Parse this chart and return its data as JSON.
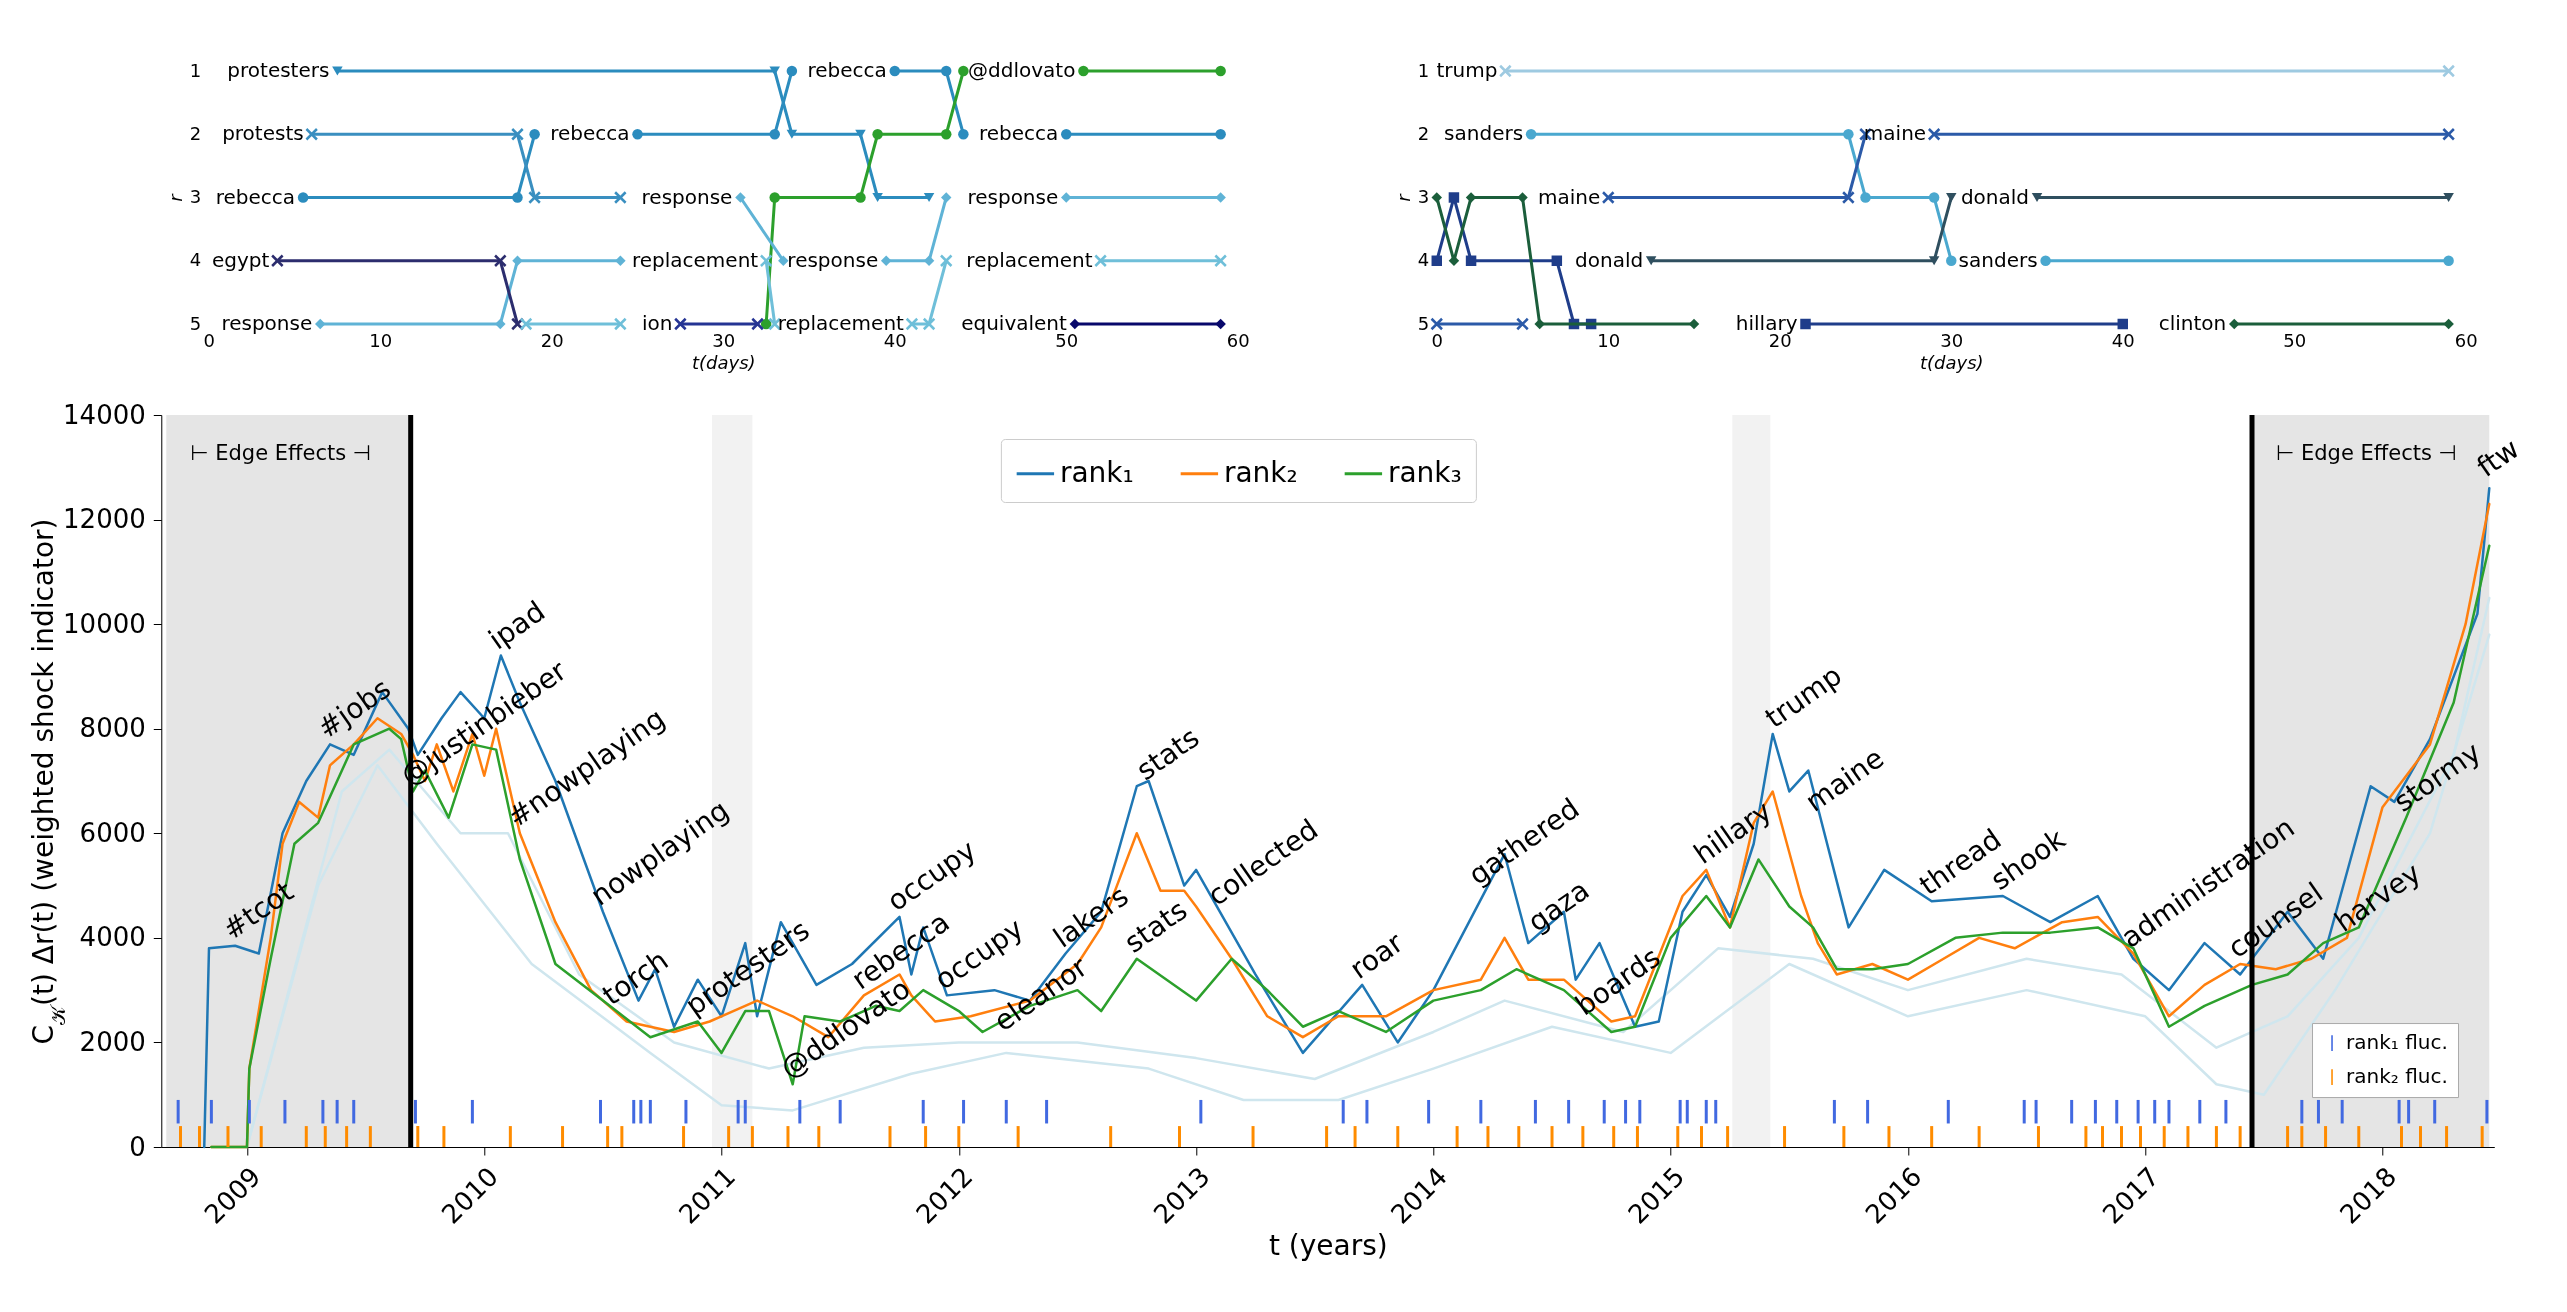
{
  "chart_data": [
    {
      "type": "line",
      "xlabel": "t(days)",
      "ylabel": "r",
      "xlim": [
        0,
        60
      ],
      "ylim": [
        5,
        1
      ],
      "xticks": [
        0,
        10,
        20,
        30,
        40,
        50,
        60
      ],
      "yticks": [
        1,
        2,
        3,
        4,
        5
      ],
      "series": [
        {
          "name": "protesters",
          "color": "#2b8cbe",
          "marker": "triangle",
          "x": [
            7.5,
            33,
            34,
            38,
            39,
            42
          ],
          "values": [
            1,
            1,
            2,
            2,
            3,
            3
          ]
        },
        {
          "name": "rebecca",
          "color": "#2b8cbe",
          "marker": "circle",
          "x": [
            5.5,
            18,
            19
          ],
          "values": [
            3,
            3,
            2
          ]
        },
        {
          "name": "rebecca",
          "color": "#2b8cbe",
          "marker": "circle",
          "x": [
            25,
            33,
            34
          ],
          "values": [
            2,
            2,
            1
          ]
        },
        {
          "name": "rebecca",
          "color": "#2b8cbe",
          "marker": "circle",
          "x": [
            40,
            43,
            44
          ],
          "values": [
            1,
            1,
            2
          ]
        },
        {
          "name": "rebecca",
          "color": "#2b8cbe",
          "marker": "circle",
          "x": [
            50,
            59
          ],
          "values": [
            2,
            2
          ]
        },
        {
          "color": "#2ca02c",
          "marker": "circle",
          "x": [
            32.5,
            33,
            38,
            39,
            43,
            44
          ],
          "values": [
            5,
            3,
            3,
            2,
            2,
            1
          ]
        },
        {
          "name": "@ddlovato",
          "color": "#2ca02c",
          "marker": "circle",
          "x": [
            51,
            59
          ],
          "values": [
            1,
            1
          ]
        },
        {
          "name": "protests",
          "color": "#3a8fc0",
          "marker": "cross",
          "x": [
            6,
            18,
            19,
            24
          ],
          "values": [
            2,
            2,
            3,
            3
          ]
        },
        {
          "name": "response",
          "color": "#5fb3d6",
          "marker": "diamond",
          "x": [
            6.5,
            17,
            18,
            24
          ],
          "values": [
            5,
            5,
            4,
            4
          ]
        },
        {
          "name": "response",
          "color": "#5fb3d6",
          "marker": "diamond",
          "x": [
            31,
            33.5
          ],
          "values": [
            3,
            4
          ]
        },
        {
          "name": "response",
          "color": "#5fb3d6",
          "marker": "diamond",
          "x": [
            39.5,
            42,
            43
          ],
          "values": [
            4,
            4,
            3
          ]
        },
        {
          "name": "response",
          "color": "#5fb3d6",
          "marker": "diamond",
          "x": [
            50,
            59
          ],
          "values": [
            3,
            3
          ]
        },
        {
          "name": "egypt",
          "color": "#2c2d6e",
          "marker": "cross",
          "x": [
            4,
            17,
            18
          ],
          "values": [
            4,
            4,
            5
          ]
        },
        {
          "color": "#6fbfd9",
          "marker": "cross",
          "x": [
            18.5,
            24
          ],
          "values": [
            5,
            5
          ]
        },
        {
          "name": "replacement",
          "color": "#6fbfd9",
          "marker": "cross",
          "x": [
            32.5,
            33
          ],
          "values": [
            4,
            5
          ]
        },
        {
          "name": "replacement",
          "color": "#6fbfd9",
          "marker": "cross",
          "x": [
            41,
            42,
            43
          ],
          "values": [
            5,
            5,
            4
          ]
        },
        {
          "name": "replacement",
          "color": "#6fbfd9",
          "marker": "cross",
          "x": [
            52,
            59
          ],
          "values": [
            4,
            4
          ]
        },
        {
          "name": "ion",
          "color": "#253494",
          "marker": "cross",
          "x": [
            27.5,
            32
          ],
          "values": [
            5,
            5
          ]
        },
        {
          "name": "equivalent",
          "color": "#08086b",
          "marker": "diamond",
          "x": [
            50.5,
            59
          ],
          "values": [
            5,
            5
          ]
        }
      ]
    },
    {
      "type": "line",
      "xlabel": "t(days)",
      "ylabel": "r",
      "xlim": [
        0,
        60
      ],
      "ylim": [
        5,
        1
      ],
      "xticks": [
        0,
        10,
        20,
        30,
        40,
        50,
        60
      ],
      "yticks": [
        1,
        2,
        3,
        4,
        5
      ],
      "series": [
        {
          "name": "trump",
          "color": "#9ecae1",
          "marker": "cross",
          "x": [
            4,
            59
          ],
          "values": [
            1,
            1
          ]
        },
        {
          "name": "sanders",
          "color": "#4aa8cf",
          "marker": "circle",
          "x": [
            5.5,
            24,
            25,
            29,
            30
          ],
          "values": [
            2,
            2,
            3,
            3,
            4
          ]
        },
        {
          "name": "sanders",
          "color": "#4aa8cf",
          "marker": "circle",
          "x": [
            35.5,
            59
          ],
          "values": [
            4,
            4
          ]
        },
        {
          "color": "#2b5aa8",
          "marker": "cross",
          "x": [
            0,
            5
          ],
          "values": [
            5,
            5
          ]
        },
        {
          "name": "maine",
          "color": "#2b5aa8",
          "marker": "cross",
          "x": [
            10,
            24,
            25
          ],
          "values": [
            3,
            3,
            2
          ]
        },
        {
          "name": "maine",
          "color": "#2b5aa8",
          "marker": "cross",
          "x": [
            29,
            59
          ],
          "values": [
            2,
            2
          ]
        },
        {
          "name": "donald",
          "color": "#2f4f5f",
          "marker": "triangle",
          "x": [
            12.5,
            29,
            30
          ],
          "values": [
            4,
            4,
            3
          ]
        },
        {
          "name": "donald",
          "color": "#2f4f5f",
          "marker": "triangle",
          "x": [
            35,
            59
          ],
          "values": [
            3,
            3
          ]
        },
        {
          "color": "#1f3d8a",
          "marker": "square",
          "x": [
            0,
            1,
            2,
            7,
            8,
            9
          ],
          "values": [
            4,
            3,
            4,
            4,
            5,
            5
          ]
        },
        {
          "name": "hillary",
          "color": "#1f3d8a",
          "marker": "square",
          "x": [
            21.5,
            40
          ],
          "values": [
            5,
            5
          ]
        },
        {
          "color": "#1b5e3b",
          "marker": "diamond",
          "x": [
            0,
            1,
            2,
            5,
            6,
            15
          ],
          "values": [
            3,
            4,
            3,
            3,
            5,
            5
          ]
        },
        {
          "name": "clinton",
          "color": "#1b5e3b",
          "marker": "diamond",
          "x": [
            46.5,
            59
          ],
          "values": [
            5,
            5
          ]
        }
      ]
    },
    {
      "type": "line",
      "xlabel": "t (years)",
      "ylabel": "C$_{𝒦}$(t) Δr(t) (weighted shock indicator)",
      "xlim": [
        2008.66,
        2018.45
      ],
      "ylim": [
        0,
        14000
      ],
      "xticks": [
        2009,
        2010,
        2011,
        2012,
        2013,
        2014,
        2015,
        2016,
        2017,
        2018
      ],
      "yticks": [
        0,
        2000,
        4000,
        6000,
        8000,
        10000,
        12000,
        14000
      ],
      "legend": "top",
      "bands": [
        {
          "axis": "x",
          "from": 2008.66,
          "to": 2009.69,
          "label": "⊢ Edge Effects ⊣",
          "color": "#e5e5e5"
        },
        {
          "axis": "x",
          "from": 2017.45,
          "to": 2018.45,
          "label": "⊢ Edge Effects ⊣",
          "color": "#e5e5e5"
        },
        {
          "axis": "x",
          "from": 2010.96,
          "to": 2011.13,
          "color": "#f2f2f2"
        },
        {
          "axis": "x",
          "from": 2015.26,
          "to": 2015.42,
          "color": "#f2f2f2"
        }
      ],
      "ref_lines": [
        {
          "axis": "x",
          "value": 2009.69,
          "color": "#000000"
        },
        {
          "axis": "x",
          "value": 2017.45,
          "color": "#000000"
        }
      ],
      "series": [
        {
          "color": "#cfe6ee",
          "x": [
            2009.0,
            2009.3,
            2009.55,
            2009.8,
            2010.2,
            2010.7,
            2011.0,
            2011.3,
            2011.8,
            2012.2,
            2012.8,
            2013.2,
            2013.6,
            2014.0,
            2014.5,
            2015.0,
            2015.5,
            2016.0,
            2016.5,
            2017.0,
            2017.3,
            2017.5,
            2017.8,
            2018.2,
            2018.45
          ],
          "values": [
            0,
            5000,
            7300,
            5800,
            3500,
            1800,
            800,
            700,
            1400,
            1800,
            1500,
            900,
            900,
            1500,
            2300,
            1800,
            3500,
            2500,
            3000,
            2500,
            1200,
            1000,
            3000,
            6000,
            9800
          ]
        },
        {
          "color": "#cfe6ee",
          "x": [
            2009.0,
            2009.4,
            2009.6,
            2009.9,
            2010.1,
            2010.4,
            2010.8,
            2011.2,
            2011.6,
            2012.0,
            2012.5,
            2013.0,
            2013.5,
            2014.0,
            2014.3,
            2014.8,
            2015.2,
            2015.6,
            2016.0,
            2016.5,
            2016.9,
            2017.3,
            2017.6,
            2017.9,
            2018.3,
            2018.45
          ],
          "values": [
            0,
            6800,
            7600,
            6000,
            6000,
            3300,
            2000,
            1500,
            1900,
            2000,
            2000,
            1700,
            1300,
            2200,
            2800,
            2200,
            3800,
            3600,
            3000,
            3600,
            3300,
            1900,
            2500,
            4000,
            7500,
            10500
          ]
        },
        {
          "name": "rank₁",
          "color": "#1f77b4",
          "x": [
            2008.82,
            2008.84,
            2008.95,
            2009.05,
            2009.15,
            2009.25,
            2009.35,
            2009.45,
            2009.57,
            2009.68,
            2009.72,
            2009.82,
            2009.9,
            2010.0,
            2010.07,
            2010.15,
            2010.3,
            2010.5,
            2010.65,
            2010.72,
            2010.8,
            2010.9,
            2011.0,
            2011.1,
            2011.15,
            2011.25,
            2011.4,
            2011.55,
            2011.75,
            2011.8,
            2011.85,
            2011.95,
            2012.15,
            2012.3,
            2012.45,
            2012.6,
            2012.75,
            2012.8,
            2012.95,
            2013.0,
            2013.25,
            2013.45,
            2013.7,
            2013.85,
            2014.0,
            2014.3,
            2014.4,
            2014.55,
            2014.6,
            2014.7,
            2014.85,
            2014.95,
            2015.05,
            2015.15,
            2015.25,
            2015.35,
            2015.43,
            2015.5,
            2015.58,
            2015.75,
            2015.9,
            2016.1,
            2016.4,
            2016.6,
            2016.8,
            2016.95,
            2017.1,
            2017.25,
            2017.4,
            2017.6,
            2017.75,
            2017.95,
            2018.05,
            2018.2,
            2018.4,
            2018.45
          ],
          "values": [
            0,
            3800,
            3850,
            3700,
            6000,
            7000,
            7700,
            7500,
            8700,
            8000,
            7500,
            8200,
            8700,
            8200,
            9400,
            8500,
            7000,
            4500,
            2800,
            3400,
            2300,
            3200,
            2500,
            3900,
            2500,
            4300,
            3100,
            3500,
            4400,
            3300,
            4200,
            2900,
            3000,
            2800,
            3700,
            4500,
            6900,
            7000,
            5000,
            5300,
            3300,
            1800,
            3100,
            2000,
            3000,
            5600,
            3900,
            4500,
            3200,
            3900,
            2300,
            2400,
            4500,
            5200,
            4400,
            5800,
            7900,
            6800,
            7200,
            4200,
            5300,
            4700,
            4800,
            4300,
            4800,
            3600,
            3000,
            3900,
            3300,
            4500,
            3600,
            6900,
            6600,
            7800,
            10200,
            12600
          ]
        },
        {
          "name": "rank₂",
          "color": "#ff7f0e",
          "x": [
            2008.85,
            2009.0,
            2009.01,
            2009.1,
            2009.15,
            2009.22,
            2009.3,
            2009.35,
            2009.45,
            2009.55,
            2009.65,
            2009.7,
            2009.75,
            2009.8,
            2009.87,
            2009.95,
            2010.0,
            2010.05,
            2010.15,
            2010.3,
            2010.45,
            2010.6,
            2010.8,
            2010.95,
            2011.15,
            2011.3,
            2011.45,
            2011.6,
            2011.75,
            2011.8,
            2011.9,
            2012.05,
            2012.3,
            2012.5,
            2012.6,
            2012.75,
            2012.85,
            2012.95,
            2013.0,
            2013.15,
            2013.3,
            2013.45,
            2013.6,
            2013.8,
            2014.0,
            2014.2,
            2014.3,
            2014.4,
            2014.55,
            2014.75,
            2014.85,
            2015.05,
            2015.15,
            2015.25,
            2015.35,
            2015.43,
            2015.55,
            2015.62,
            2015.7,
            2015.85,
            2016.0,
            2016.15,
            2016.3,
            2016.45,
            2016.65,
            2016.8,
            2016.95,
            2017.1,
            2017.25,
            2017.4,
            2017.55,
            2017.7,
            2017.85,
            2018.0,
            2018.2,
            2018.35,
            2018.45
          ],
          "values": [
            0,
            0,
            1500,
            4000,
            5800,
            6600,
            6300,
            7300,
            7700,
            8200,
            7900,
            7500,
            7000,
            7700,
            6800,
            7900,
            7100,
            8000,
            6000,
            4300,
            3000,
            2400,
            2200,
            2400,
            2800,
            2500,
            2100,
            2900,
            3300,
            2900,
            2400,
            2500,
            2800,
            3500,
            4200,
            6000,
            4900,
            4900,
            4600,
            3600,
            2500,
            2100,
            2500,
            2500,
            3000,
            3200,
            4000,
            3200,
            3200,
            2400,
            2500,
            4800,
            5300,
            4200,
            6200,
            6800,
            4800,
            3900,
            3300,
            3500,
            3200,
            3600,
            4000,
            3800,
            4300,
            4400,
            3700,
            2500,
            3100,
            3500,
            3400,
            3600,
            4000,
            6500,
            7700,
            10000,
            12300
          ]
        },
        {
          "name": "rank₃",
          "color": "#2ca02c",
          "x": [
            2008.85,
            2009.0,
            2009.01,
            2009.1,
            2009.2,
            2009.3,
            2009.45,
            2009.6,
            2009.65,
            2009.7,
            2009.75,
            2009.85,
            2009.95,
            2010.05,
            2010.15,
            2010.3,
            2010.5,
            2010.7,
            2010.9,
            2011.0,
            2011.1,
            2011.2,
            2011.3,
            2011.35,
            2011.5,
            2011.65,
            2011.75,
            2011.85,
            2012.0,
            2012.1,
            2012.3,
            2012.5,
            2012.6,
            2012.75,
            2013.0,
            2013.15,
            2013.3,
            2013.45,
            2013.6,
            2013.8,
            2014.0,
            2014.2,
            2014.35,
            2014.55,
            2014.75,
            2014.85,
            2015.0,
            2015.15,
            2015.25,
            2015.37,
            2015.5,
            2015.6,
            2015.7,
            2015.85,
            2016.0,
            2016.2,
            2016.4,
            2016.6,
            2016.8,
            2016.95,
            2017.1,
            2017.25,
            2017.45,
            2017.6,
            2017.75,
            2017.9,
            2018.1,
            2018.3,
            2018.45
          ],
          "values": [
            0,
            0,
            1500,
            3600,
            5800,
            6200,
            7700,
            8000,
            7800,
            6800,
            7200,
            6300,
            7700,
            7600,
            5500,
            3500,
            2800,
            2100,
            2400,
            1800,
            2600,
            2600,
            1200,
            2500,
            2400,
            2700,
            2600,
            3000,
            2600,
            2200,
            2700,
            3000,
            2600,
            3600,
            2800,
            3600,
            3000,
            2300,
            2600,
            2200,
            2800,
            3000,
            3400,
            3000,
            2200,
            2300,
            4000,
            4800,
            4200,
            5500,
            4600,
            4200,
            3400,
            3400,
            3500,
            4000,
            4100,
            4100,
            4200,
            3800,
            2300,
            2700,
            3100,
            3300,
            3900,
            4200,
            6300,
            8500,
            11500
          ]
        },
        {
          "name": "rank₁ fluc.",
          "type": "bar",
          "color": "#4169e1",
          "x": [
            2008.71,
            2008.85,
            2009.01,
            2009.16,
            2009.32,
            2009.38,
            2009.45,
            2009.71,
            2009.95,
            2010.49,
            2010.63,
            2010.66,
            2010.7,
            2010.85,
            2011.07,
            2011.1,
            2011.33,
            2011.5,
            2011.85,
            2012.02,
            2012.2,
            2012.37,
            2013.02,
            2013.62,
            2013.72,
            2013.98,
            2014.2,
            2014.43,
            2014.57,
            2014.72,
            2014.81,
            2014.87,
            2015.04,
            2015.07,
            2015.15,
            2015.19,
            2015.69,
            2015.83,
            2016.17,
            2016.49,
            2016.54,
            2016.69,
            2016.79,
            2016.88,
            2016.97,
            2017.04,
            2017.1,
            2017.23,
            2017.34,
            2017.66,
            2017.73,
            2017.83,
            2018.07,
            2018.11,
            2018.22,
            2018.44
          ],
          "base": [
            450,
            450,
            450,
            450,
            450,
            450,
            450,
            450,
            450,
            450,
            450,
            450,
            450,
            450,
            450,
            450,
            450,
            450,
            450,
            450,
            450,
            450,
            450,
            450,
            450,
            450,
            450,
            450,
            450,
            450,
            450,
            450,
            450,
            450,
            450,
            450,
            450,
            450,
            450,
            450,
            450,
            450,
            450,
            450,
            450,
            450,
            450,
            450,
            450,
            450,
            450,
            450,
            450,
            450,
            450,
            450
          ],
          "values": [
            450,
            450,
            450,
            450,
            450,
            450,
            450,
            450,
            450,
            450,
            450,
            450,
            450,
            450,
            450,
            450,
            450,
            450,
            450,
            450,
            450,
            450,
            450,
            450,
            450,
            450,
            450,
            450,
            450,
            450,
            450,
            450,
            450,
            450,
            450,
            450,
            450,
            450,
            450,
            450,
            450,
            450,
            450,
            450,
            450,
            450,
            450,
            450,
            450,
            450,
            450,
            450,
            450,
            450,
            450,
            450
          ]
        },
        {
          "name": "rank₂ fluc.",
          "type": "bar",
          "color": "#ff8c00",
          "x": [
            2008.72,
            2008.8,
            2008.92,
            2009.06,
            2009.25,
            2009.33,
            2009.42,
            2009.52,
            2009.72,
            2009.83,
            2010.11,
            2010.33,
            2010.52,
            2010.58,
            2010.84,
            2011.03,
            2011.13,
            2011.28,
            2011.41,
            2011.71,
            2011.86,
            2012.0,
            2012.25,
            2012.64,
            2012.93,
            2013.24,
            2013.55,
            2013.67,
            2013.85,
            2014.1,
            2014.23,
            2014.36,
            2014.5,
            2014.63,
            2014.76,
            2014.86,
            2015.03,
            2015.13,
            2015.24,
            2015.48,
            2015.73,
            2015.92,
            2016.1,
            2016.3,
            2016.55,
            2016.75,
            2016.82,
            2016.9,
            2016.98,
            2017.08,
            2017.18,
            2017.3,
            2017.4,
            2017.6,
            2017.66,
            2017.76,
            2017.9,
            2018.08,
            2018.16,
            2018.27,
            2018.42
          ],
          "base": [
            0,
            0,
            0,
            0,
            0,
            0,
            0,
            0,
            0,
            0,
            0,
            0,
            0,
            0,
            0,
            0,
            0,
            0,
            0,
            0,
            0,
            0,
            0,
            0,
            0,
            0,
            0,
            0,
            0,
            0,
            0,
            0,
            0,
            0,
            0,
            0,
            0,
            0,
            0,
            0,
            0,
            0,
            0,
            0,
            0,
            0,
            0,
            0,
            0,
            0,
            0,
            0,
            0,
            0,
            0,
            0,
            0,
            0,
            0,
            0,
            0
          ],
          "values": [
            400,
            400,
            400,
            400,
            400,
            400,
            400,
            400,
            400,
            400,
            400,
            400,
            400,
            400,
            400,
            400,
            400,
            400,
            400,
            400,
            400,
            400,
            400,
            400,
            400,
            400,
            400,
            400,
            400,
            400,
            400,
            400,
            400,
            400,
            400,
            400,
            400,
            400,
            400,
            400,
            400,
            400,
            400,
            400,
            400,
            400,
            400,
            400,
            400,
            400,
            400,
            400,
            400,
            400,
            400,
            400,
            400,
            400,
            400,
            400,
            400
          ]
        }
      ],
      "annotations": [
        {
          "text": "#tcot",
          "x": 2008.95,
          "y": 3850
        },
        {
          "text": "#jobs",
          "x": 2009.35,
          "y": 7700
        },
        {
          "text": "@justinbieber",
          "x": 2009.7,
          "y": 6800
        },
        {
          "text": "#nowplaying",
          "x": 2010.15,
          "y": 6000
        },
        {
          "text": "ipad",
          "x": 2010.07,
          "y": 9400
        },
        {
          "text": "nowplaying",
          "x": 2010.5,
          "y": 4500
        },
        {
          "text": "torch",
          "x": 2010.55,
          "y": 2600
        },
        {
          "text": "protesters",
          "x": 2010.9,
          "y": 2400
        },
        {
          "text": "@ddlovato",
          "x": 2011.3,
          "y": 1200
        },
        {
          "text": "rebecca",
          "x": 2011.6,
          "y": 2900
        },
        {
          "text": "occupy",
          "x": 2011.95,
          "y": 2900
        },
        {
          "text": "occupy",
          "x": 2011.75,
          "y": 4400
        },
        {
          "text": "lakers",
          "x": 2012.45,
          "y": 3700
        },
        {
          "text": "eleanor",
          "x": 2012.2,
          "y": 2100
        },
        {
          "text": "stats",
          "x": 2012.75,
          "y": 3600
        },
        {
          "text": "stats",
          "x": 2012.8,
          "y": 6900
        },
        {
          "text": "collected",
          "x": 2013.1,
          "y": 4500
        },
        {
          "text": "roar",
          "x": 2013.7,
          "y": 3100
        },
        {
          "text": "gathered",
          "x": 2014.2,
          "y": 4900
        },
        {
          "text": "gaza",
          "x": 2014.45,
          "y": 4000
        },
        {
          "text": "boards",
          "x": 2014.65,
          "y": 2400
        },
        {
          "text": "hillary",
          "x": 2015.15,
          "y": 5300
        },
        {
          "text": "trump",
          "x": 2015.45,
          "y": 7900
        },
        {
          "text": "maine",
          "x": 2015.62,
          "y": 6300
        },
        {
          "text": "thread",
          "x": 2016.1,
          "y": 4700
        },
        {
          "text": "shook",
          "x": 2016.4,
          "y": 4800
        },
        {
          "text": "administration",
          "x": 2016.95,
          "y": 3700
        },
        {
          "text": "counsel",
          "x": 2017.4,
          "y": 3500
        },
        {
          "text": "harvey",
          "x": 2017.85,
          "y": 4000
        },
        {
          "text": "stormy",
          "x": 2018.1,
          "y": 6300
        },
        {
          "text": "ftw",
          "x": 2018.45,
          "y": 12700
        }
      ]
    }
  ]
}
